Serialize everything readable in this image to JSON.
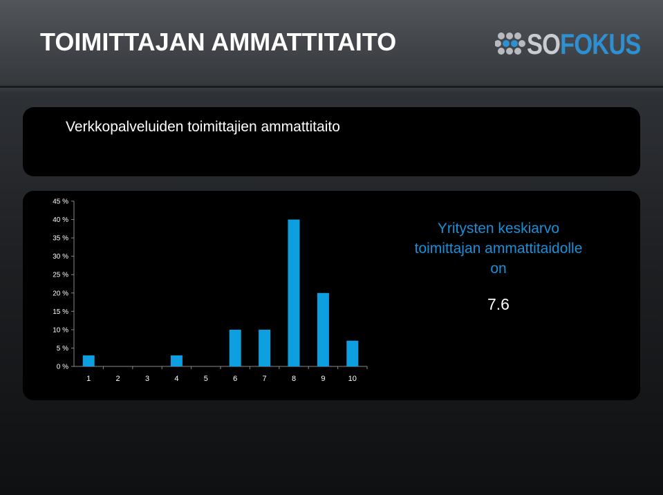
{
  "header": {
    "title": "TOIMITTAJAN AMMATTITAITO",
    "logo": {
      "prefix": "SO",
      "suffix": "FOKUS",
      "colors": {
        "prefix": "#c9ccd0",
        "suffix": "#2e8fd1"
      }
    }
  },
  "panel": {
    "subtitle": "Verkkopalveluiden toimittajien ammattitaito"
  },
  "summary": {
    "lines": [
      "Yritysten keskiarvo",
      "toimittajan ammattitaidolle",
      "on"
    ],
    "value": "7.6",
    "color": "#1b8fd8"
  },
  "chart_data": {
    "type": "bar",
    "categories": [
      "1",
      "2",
      "3",
      "4",
      "5",
      "6",
      "7",
      "8",
      "9",
      "10"
    ],
    "values": [
      3,
      0,
      0,
      3,
      0,
      10,
      10,
      40,
      20,
      7
    ],
    "ylim": [
      0,
      45
    ],
    "yticks": [
      0,
      5,
      10,
      15,
      20,
      25,
      30,
      35,
      40,
      45
    ],
    "ytick_format": "{v} %",
    "grid": false,
    "bar_color": "#0d9fe0"
  }
}
